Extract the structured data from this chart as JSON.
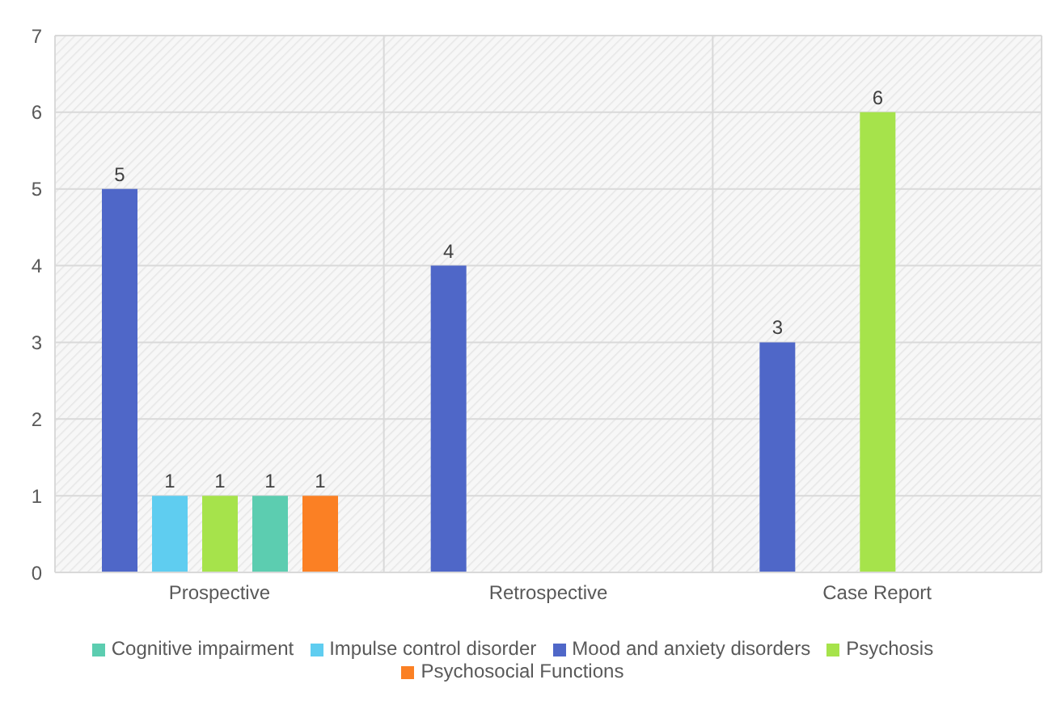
{
  "chart_data": {
    "type": "bar",
    "categories": [
      "Prospective",
      "Retrospective",
      "Case Report"
    ],
    "series": [
      {
        "name": "Mood and anxiety disorders",
        "color": "#4f67c8",
        "values": [
          5,
          4,
          3
        ]
      },
      {
        "name": "Impulse control disorder",
        "color": "#5fcdf0",
        "values": [
          1,
          null,
          null
        ]
      },
      {
        "name": "Psychosis",
        "color": "#a6e34b",
        "values": [
          1,
          null,
          6
        ]
      },
      {
        "name": "Cognitive impairment",
        "color": "#5ccdb0",
        "values": [
          1,
          null,
          null
        ]
      },
      {
        "name": "Psychosocial Functions",
        "color": "#fb8024",
        "values": [
          1,
          null,
          null
        ]
      }
    ],
    "ylim": [
      0,
      7
    ],
    "yticks": [
      0,
      1,
      2,
      3,
      4,
      5,
      6,
      7
    ],
    "grid": true,
    "legend": "bottom",
    "data_labels": true
  }
}
